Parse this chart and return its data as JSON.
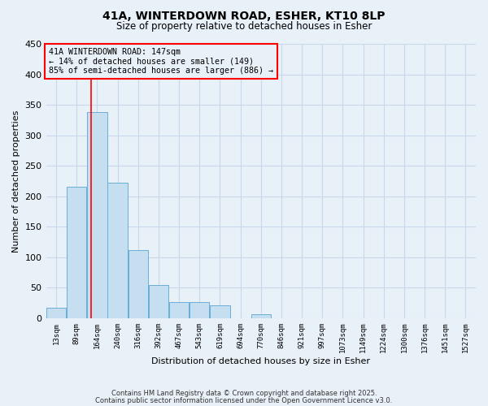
{
  "title1": "41A, WINTERDOWN ROAD, ESHER, KT10 8LP",
  "title2": "Size of property relative to detached houses in Esher",
  "xlabel": "Distribution of detached houses by size in Esher",
  "ylabel": "Number of detached properties",
  "bar_labels": [
    "13sqm",
    "89sqm",
    "164sqm",
    "240sqm",
    "316sqm",
    "392sqm",
    "467sqm",
    "543sqm",
    "619sqm",
    "694sqm",
    "770sqm",
    "846sqm",
    "921sqm",
    "997sqm",
    "1073sqm",
    "1149sqm",
    "1224sqm",
    "1300sqm",
    "1376sqm",
    "1451sqm",
    "1527sqm"
  ],
  "bar_values": [
    17,
    216,
    338,
    222,
    112,
    55,
    26,
    26,
    21,
    0,
    6,
    0,
    0,
    0,
    0,
    0,
    0,
    0,
    0,
    0,
    0
  ],
  "bar_color": "#c5dff0",
  "bar_edge_color": "#6aaed6",
  "vline_x": 1.72,
  "vline_color": "red",
  "ylim": [
    0,
    450
  ],
  "yticks": [
    0,
    50,
    100,
    150,
    200,
    250,
    300,
    350,
    400,
    450
  ],
  "annotation_line1": "41A WINTERDOWN ROAD: 147sqm",
  "annotation_line2": "← 14% of detached houses are smaller (149)",
  "annotation_line3": "85% of semi-detached houses are larger (886) →",
  "annotation_box_color": "red",
  "grid_color": "#c8d8ea",
  "bg_color": "#e8f0f8",
  "footer1": "Contains HM Land Registry data © Crown copyright and database right 2025.",
  "footer2": "Contains public sector information licensed under the Open Government Licence v3.0."
}
